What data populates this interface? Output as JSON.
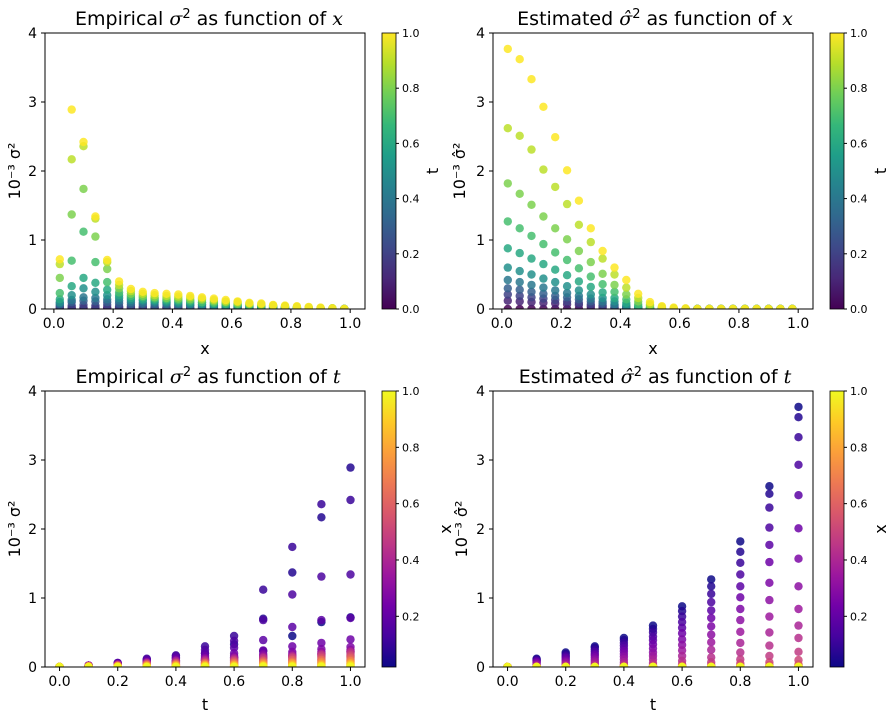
{
  "colormaps": {
    "viridis": [
      "#440154",
      "#482878",
      "#3e4989",
      "#31688e",
      "#26828e",
      "#1f9e89",
      "#35b779",
      "#6ece58",
      "#b5de2b",
      "#fde725"
    ],
    "plasma": [
      "#0d0887",
      "#46039f",
      "#7201a8",
      "#9c179e",
      "#bd3786",
      "#d8576b",
      "#ed7953",
      "#fb9f3a",
      "#fdca26",
      "#f0f921"
    ]
  },
  "panels": [
    {
      "title_parts": [
        "Empirical ",
        "σ",
        "2",
        " as function of ",
        "x"
      ],
      "xlabel": "x",
      "ylabel": "10⁻³ σ²",
      "xticks": [
        "0.0",
        "0.2",
        "0.4",
        "0.6",
        "0.8",
        "1.0"
      ],
      "yticks": [
        "0",
        "1",
        "2",
        "3",
        "4"
      ],
      "colorbar": {
        "label": "t",
        "ticks": [
          "0.0",
          "0.2",
          "0.4",
          "0.6",
          "0.8",
          "1.0"
        ]
      }
    },
    {
      "title_parts": [
        "Estimated ",
        "σ̂",
        "2",
        " as function of ",
        "x"
      ],
      "xlabel": "x",
      "ylabel": "10⁻³ σ̂²",
      "xticks": [
        "0.0",
        "0.2",
        "0.4",
        "0.6",
        "0.8",
        "1.0"
      ],
      "yticks": [
        "0",
        "1",
        "2",
        "3",
        "4"
      ],
      "colorbar": {
        "label": "t",
        "ticks": [
          "0.0",
          "0.2",
          "0.4",
          "0.6",
          "0.8",
          "1.0"
        ]
      }
    },
    {
      "title_parts": [
        "Empirical ",
        "σ",
        "2",
        " as function of ",
        "t"
      ],
      "xlabel": "t",
      "ylabel": "10⁻³ σ²",
      "xticks": [
        "0.0",
        "0.2",
        "0.4",
        "0.6",
        "0.8",
        "1.0"
      ],
      "yticks": [
        "0",
        "1",
        "2",
        "3",
        "4"
      ],
      "colorbar": {
        "label": "",
        "ticks": [
          "0.2",
          "0.4",
          "0.6",
          "0.8",
          "1.0"
        ]
      }
    },
    {
      "title_parts": [
        "Estimated ",
        "σ̂",
        "2",
        " as function of ",
        "t"
      ],
      "xlabel": "t",
      "ylabel": "x",
      "ylabel2": "10⁻³ σ̂²",
      "xticks": [
        "0.0",
        "0.2",
        "0.4",
        "0.6",
        "0.8",
        "1.0"
      ],
      "yticks": [
        "0",
        "1",
        "2",
        "3",
        "4"
      ],
      "colorbar": {
        "label": "x",
        "ticks": [
          "0.2",
          "0.4",
          "0.6",
          "0.8",
          "1.0"
        ]
      }
    }
  ],
  "chart_data": [
    {
      "type": "scatter",
      "title": "Empirical σ² as function of x",
      "xlabel": "x",
      "ylabel": "10⁻³ σ²",
      "xlim": [
        -0.03,
        1.05
      ],
      "ylim": [
        0,
        4
      ],
      "color_by": "t",
      "clim": [
        0,
        1
      ],
      "colormap": "viridis",
      "t_levels": [
        0,
        0.1,
        0.2,
        0.3,
        0.4,
        0.5,
        0.6,
        0.7,
        0.8,
        0.9,
        1.0
      ],
      "x": [
        0.02,
        0.06,
        0.1,
        0.14,
        0.18,
        0.22,
        0.26,
        0.3,
        0.34,
        0.38,
        0.42,
        0.46,
        0.5,
        0.54,
        0.58,
        0.62,
        0.66,
        0.7,
        0.74,
        0.78,
        0.82,
        0.86,
        0.9,
        0.94,
        0.98
      ],
      "y_by_t": [
        [
          0.0,
          0.0,
          0.0,
          0.0,
          0.0,
          0.0,
          0.0,
          0.0,
          0.0,
          0.0,
          0.0,
          0.0,
          0.0,
          0.0,
          0.0,
          0.0,
          0.0,
          0.0,
          0.0,
          0.0,
          0.0,
          0.0,
          0.0,
          0.0,
          0.0
        ],
        [
          0.02,
          0.02,
          0.02,
          0.02,
          0.02,
          0.02,
          0.02,
          0.02,
          0.02,
          0.02,
          0.01,
          0.01,
          0.01,
          0.01,
          0.01,
          0.01,
          0.01,
          0.01,
          0.0,
          0.0,
          0.0,
          0.0,
          0.0,
          0.0,
          0.0
        ],
        [
          0.04,
          0.05,
          0.06,
          0.05,
          0.06,
          0.04,
          0.04,
          0.04,
          0.03,
          0.03,
          0.03,
          0.02,
          0.02,
          0.02,
          0.02,
          0.02,
          0.01,
          0.01,
          0.01,
          0.01,
          0.0,
          0.0,
          0.0,
          0.0,
          0.0
        ],
        [
          0.06,
          0.1,
          0.12,
          0.11,
          0.1,
          0.08,
          0.07,
          0.07,
          0.06,
          0.06,
          0.05,
          0.05,
          0.04,
          0.04,
          0.03,
          0.03,
          0.02,
          0.02,
          0.02,
          0.01,
          0.01,
          0.0,
          0.0,
          0.0,
          0.0
        ],
        [
          0.08,
          0.13,
          0.17,
          0.16,
          0.14,
          0.12,
          0.1,
          0.09,
          0.09,
          0.08,
          0.07,
          0.06,
          0.06,
          0.05,
          0.04,
          0.04,
          0.03,
          0.03,
          0.02,
          0.02,
          0.01,
          0.01,
          0.0,
          0.0,
          0.0
        ],
        [
          0.1,
          0.2,
          0.3,
          0.25,
          0.2,
          0.16,
          0.13,
          0.12,
          0.11,
          0.1,
          0.09,
          0.08,
          0.07,
          0.06,
          0.05,
          0.05,
          0.04,
          0.03,
          0.03,
          0.02,
          0.02,
          0.01,
          0.01,
          0.0,
          0.0
        ],
        [
          0.14,
          0.33,
          0.45,
          0.38,
          0.28,
          0.2,
          0.16,
          0.14,
          0.13,
          0.12,
          0.11,
          0.1,
          0.09,
          0.08,
          0.07,
          0.06,
          0.05,
          0.04,
          0.03,
          0.03,
          0.02,
          0.01,
          0.01,
          0.0,
          0.0
        ],
        [
          0.23,
          0.7,
          1.12,
          0.68,
          0.39,
          0.24,
          0.19,
          0.17,
          0.15,
          0.14,
          0.13,
          0.12,
          0.1,
          0.09,
          0.08,
          0.07,
          0.06,
          0.05,
          0.04,
          0.03,
          0.02,
          0.02,
          0.01,
          0.01,
          0.0
        ],
        [
          0.45,
          1.37,
          1.74,
          1.05,
          0.58,
          0.3,
          0.22,
          0.19,
          0.17,
          0.16,
          0.15,
          0.14,
          0.13,
          0.11,
          0.1,
          0.08,
          0.07,
          0.06,
          0.05,
          0.04,
          0.03,
          0.02,
          0.01,
          0.01,
          0.0
        ],
        [
          0.65,
          2.17,
          2.36,
          1.31,
          0.68,
          0.35,
          0.26,
          0.22,
          0.2,
          0.19,
          0.18,
          0.17,
          0.15,
          0.13,
          0.11,
          0.1,
          0.08,
          0.07,
          0.05,
          0.04,
          0.03,
          0.02,
          0.01,
          0.01,
          0.0
        ],
        [
          0.72,
          2.89,
          2.42,
          1.34,
          0.71,
          0.4,
          0.29,
          0.25,
          0.23,
          0.22,
          0.21,
          0.19,
          0.17,
          0.15,
          0.13,
          0.11,
          0.09,
          0.08,
          0.06,
          0.05,
          0.04,
          0.03,
          0.02,
          0.01,
          0.0
        ]
      ]
    },
    {
      "type": "scatter",
      "title": "Estimated σ̂² as function of x",
      "xlabel": "x",
      "ylabel": "10⁻³ σ̂²",
      "xlim": [
        -0.03,
        1.05
      ],
      "ylim": [
        0,
        4
      ],
      "color_by": "t",
      "clim": [
        0,
        1
      ],
      "colormap": "viridis",
      "t_levels": [
        0,
        0.1,
        0.2,
        0.3,
        0.4,
        0.5,
        0.6,
        0.7,
        0.8,
        0.9,
        1.0
      ],
      "x": [
        0.02,
        0.06,
        0.1,
        0.14,
        0.18,
        0.22,
        0.26,
        0.3,
        0.34,
        0.38,
        0.42,
        0.46,
        0.5,
        0.54,
        0.58,
        0.62,
        0.66,
        0.7,
        0.74,
        0.78,
        0.82,
        0.86,
        0.9,
        0.94,
        0.98
      ],
      "y_by_t": [
        [
          0.0,
          0.0,
          0.0,
          0.0,
          0.0,
          0.0,
          0.0,
          0.0,
          0.0,
          0.0,
          0.0,
          0.0,
          0.0,
          0.0,
          0.0,
          0.0,
          0.0,
          0.0,
          0.0,
          0.0,
          0.0,
          0.0,
          0.0,
          0.0,
          0.0
        ],
        [
          0.12,
          0.11,
          0.1,
          0.09,
          0.08,
          0.07,
          0.06,
          0.04,
          0.03,
          0.02,
          0.01,
          0.0,
          0.0,
          0.0,
          0.0,
          0.0,
          0.0,
          0.0,
          0.0,
          0.0,
          0.0,
          0.0,
          0.0,
          0.0,
          0.0
        ],
        [
          0.21,
          0.19,
          0.17,
          0.15,
          0.13,
          0.11,
          0.09,
          0.07,
          0.05,
          0.03,
          0.02,
          0.01,
          0.0,
          0.0,
          0.0,
          0.0,
          0.0,
          0.0,
          0.0,
          0.0,
          0.0,
          0.0,
          0.0,
          0.0,
          0.0
        ],
        [
          0.3,
          0.28,
          0.25,
          0.22,
          0.19,
          0.17,
          0.14,
          0.11,
          0.08,
          0.05,
          0.03,
          0.01,
          0.0,
          0.0,
          0.0,
          0.0,
          0.0,
          0.0,
          0.0,
          0.0,
          0.0,
          0.0,
          0.0,
          0.0,
          0.0
        ],
        [
          0.42,
          0.39,
          0.35,
          0.31,
          0.27,
          0.23,
          0.19,
          0.15,
          0.11,
          0.07,
          0.04,
          0.02,
          0.01,
          0.0,
          0.0,
          0.0,
          0.0,
          0.0,
          0.0,
          0.0,
          0.0,
          0.0,
          0.0,
          0.0,
          0.0
        ],
        [
          0.6,
          0.55,
          0.5,
          0.44,
          0.39,
          0.33,
          0.27,
          0.21,
          0.16,
          0.11,
          0.06,
          0.03,
          0.01,
          0.0,
          0.0,
          0.0,
          0.0,
          0.0,
          0.0,
          0.0,
          0.0,
          0.0,
          0.0,
          0.0,
          0.0
        ],
        [
          0.88,
          0.81,
          0.73,
          0.65,
          0.57,
          0.49,
          0.4,
          0.32,
          0.24,
          0.16,
          0.09,
          0.04,
          0.02,
          0.01,
          0.0,
          0.0,
          0.0,
          0.0,
          0.0,
          0.0,
          0.0,
          0.0,
          0.0,
          0.0,
          0.0
        ],
        [
          1.27,
          1.17,
          1.06,
          0.94,
          0.82,
          0.71,
          0.59,
          0.47,
          0.36,
          0.25,
          0.14,
          0.07,
          0.03,
          0.01,
          0.0,
          0.0,
          0.0,
          0.0,
          0.0,
          0.0,
          0.0,
          0.0,
          0.0,
          0.0,
          0.0
        ],
        [
          1.82,
          1.67,
          1.51,
          1.34,
          1.17,
          1.01,
          0.84,
          0.68,
          0.51,
          0.35,
          0.21,
          0.11,
          0.05,
          0.02,
          0.01,
          0.0,
          0.0,
          0.0,
          0.0,
          0.0,
          0.0,
          0.0,
          0.0,
          0.0,
          0.0
        ],
        [
          2.62,
          2.51,
          2.31,
          2.02,
          1.77,
          1.52,
          1.22,
          0.97,
          0.73,
          0.5,
          0.31,
          0.16,
          0.07,
          0.03,
          0.01,
          0.0,
          0.0,
          0.0,
          0.0,
          0.0,
          0.0,
          0.0,
          0.0,
          0.0,
          0.0
        ],
        [
          3.77,
          3.62,
          3.33,
          2.93,
          2.49,
          2.01,
          1.57,
          1.17,
          0.84,
          0.6,
          0.42,
          0.22,
          0.1,
          0.04,
          0.02,
          0.01,
          0.0,
          0.0,
          0.0,
          0.0,
          0.0,
          0.0,
          0.0,
          0.0,
          0.0
        ]
      ]
    },
    {
      "type": "scatter",
      "title": "Empirical σ² as function of t",
      "xlabel": "t",
      "ylabel": "10⁻³ σ²",
      "xlim": [
        -0.05,
        1.05
      ],
      "ylim": [
        0,
        4
      ],
      "color_by": "x",
      "clim": [
        0.02,
        1.0
      ],
      "colormap": "plasma",
      "x": [
        0,
        0.1,
        0.2,
        0.3,
        0.4,
        0.5,
        0.6,
        0.7,
        0.8,
        0.9,
        1.0
      ],
      "note": "same values as panel 1, transposed: one point per (t, x) pair"
    },
    {
      "type": "scatter",
      "title": "Estimated σ̂² as function of t",
      "xlabel": "t",
      "ylabel": "10⁻³ σ̂²",
      "xlim": [
        -0.05,
        1.05
      ],
      "ylim": [
        0,
        4
      ],
      "color_by": "x",
      "clim": [
        0.02,
        1.0
      ],
      "colormap": "plasma",
      "x": [
        0,
        0.1,
        0.2,
        0.3,
        0.4,
        0.5,
        0.6,
        0.7,
        0.8,
        0.9,
        1.0
      ],
      "note": "same values as panel 2, transposed: one point per (t, x) pair"
    }
  ]
}
